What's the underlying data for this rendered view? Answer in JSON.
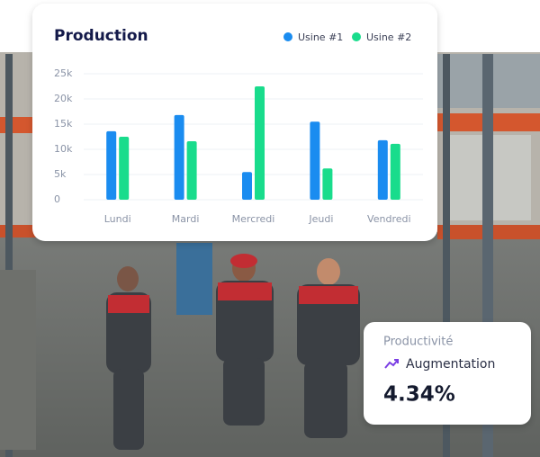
{
  "chart_data": {
    "type": "bar",
    "title": "Production",
    "categories": [
      "Lundi",
      "Mardi",
      "Mercredi",
      "Jeudi",
      "Vendredi"
    ],
    "series": [
      {
        "name": "Usine #1",
        "color": "#1a8cf0",
        "values": [
          13600,
          16800,
          5500,
          15500,
          11800
        ]
      },
      {
        "name": "Usine #2",
        "color": "#19dc8c",
        "values": [
          12500,
          11600,
          22500,
          6200,
          11100
        ]
      }
    ],
    "ylim": [
      0,
      25000
    ],
    "yticks": [
      0,
      {
        "value": 5000,
        "label": "5k"
      },
      {
        "value": 10000,
        "label": "10k"
      },
      {
        "value": 15000,
        "label": "15k"
      },
      {
        "value": 20000,
        "label": "20k"
      },
      {
        "value": 25000,
        "label": "25k"
      }
    ],
    "grid": true
  },
  "stat_card": {
    "label": "Productivité",
    "trend": "Augmentation",
    "value": "4.34%"
  }
}
